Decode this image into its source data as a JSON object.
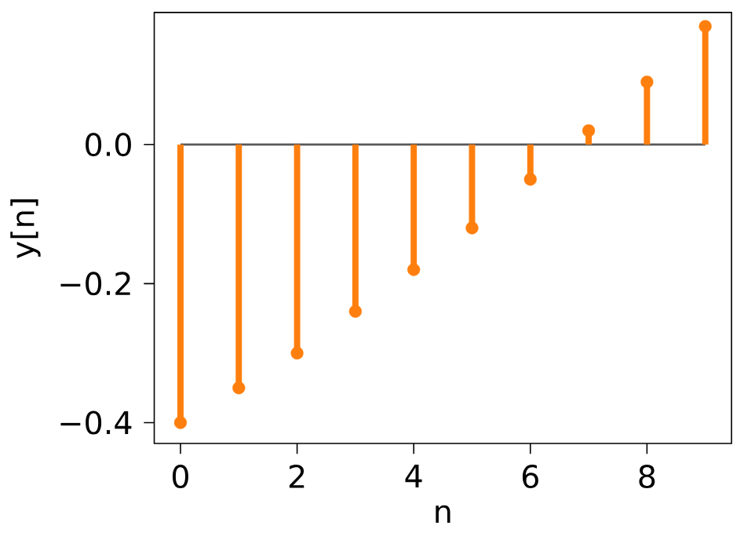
{
  "chart_data": {
    "type": "lollipop",
    "xlabel": "n",
    "ylabel": "y[n]",
    "x": [
      0,
      1,
      2,
      3,
      4,
      5,
      6,
      7,
      8,
      9
    ],
    "values": [
      -0.4,
      -0.35,
      -0.3,
      -0.24,
      -0.18,
      -0.12,
      -0.05,
      0.02,
      0.09,
      0.17
    ],
    "color": "#ff7f0e",
    "marker": "circle",
    "xlim": [
      -0.45,
      9.45
    ],
    "ylim": [
      -0.43,
      0.19
    ],
    "xticks": [
      0,
      2,
      4,
      6,
      8
    ],
    "yticks": [
      {
        "value": -0.4,
        "label": "−0.4"
      },
      {
        "value": -0.2,
        "label": "−0.2"
      },
      {
        "value": 0.0,
        "label": "0.0"
      }
    ]
  }
}
